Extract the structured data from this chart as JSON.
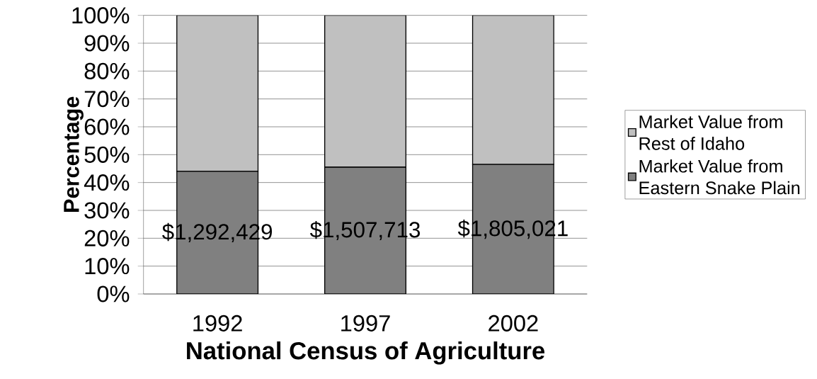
{
  "chart_data": {
    "type": "bar",
    "stacked": true,
    "xlabel": "National Census of Agriculture",
    "ylabel": "Percentage",
    "categories": [
      "1992",
      "1997",
      "2002"
    ],
    "series": [
      {
        "name": "Market Value from Eastern Snake Plain",
        "color": "#808080",
        "values": [
          44.0,
          45.5,
          46.5
        ]
      },
      {
        "name": "Market Value from Rest of Idaho",
        "color": "#c0c0c0",
        "values": [
          56.0,
          54.5,
          53.5
        ]
      }
    ],
    "ylim": [
      0,
      100
    ],
    "yticks": [
      {
        "value": 0,
        "label": "0%"
      },
      {
        "value": 10,
        "label": "10%"
      },
      {
        "value": 20,
        "label": "20%"
      },
      {
        "value": 30,
        "label": "30%"
      },
      {
        "value": 40,
        "label": "40%"
      },
      {
        "value": 50,
        "label": "50%"
      },
      {
        "value": 60,
        "label": "60%"
      },
      {
        "value": 70,
        "label": "70%"
      },
      {
        "value": 80,
        "label": "80%"
      },
      {
        "value": 90,
        "label": "90%"
      },
      {
        "value": 100,
        "label": "100%"
      }
    ],
    "annotations": [
      "$1,292,429",
      "$1,507,713",
      "$1,805,021"
    ],
    "grid": "y",
    "legend": "right"
  }
}
